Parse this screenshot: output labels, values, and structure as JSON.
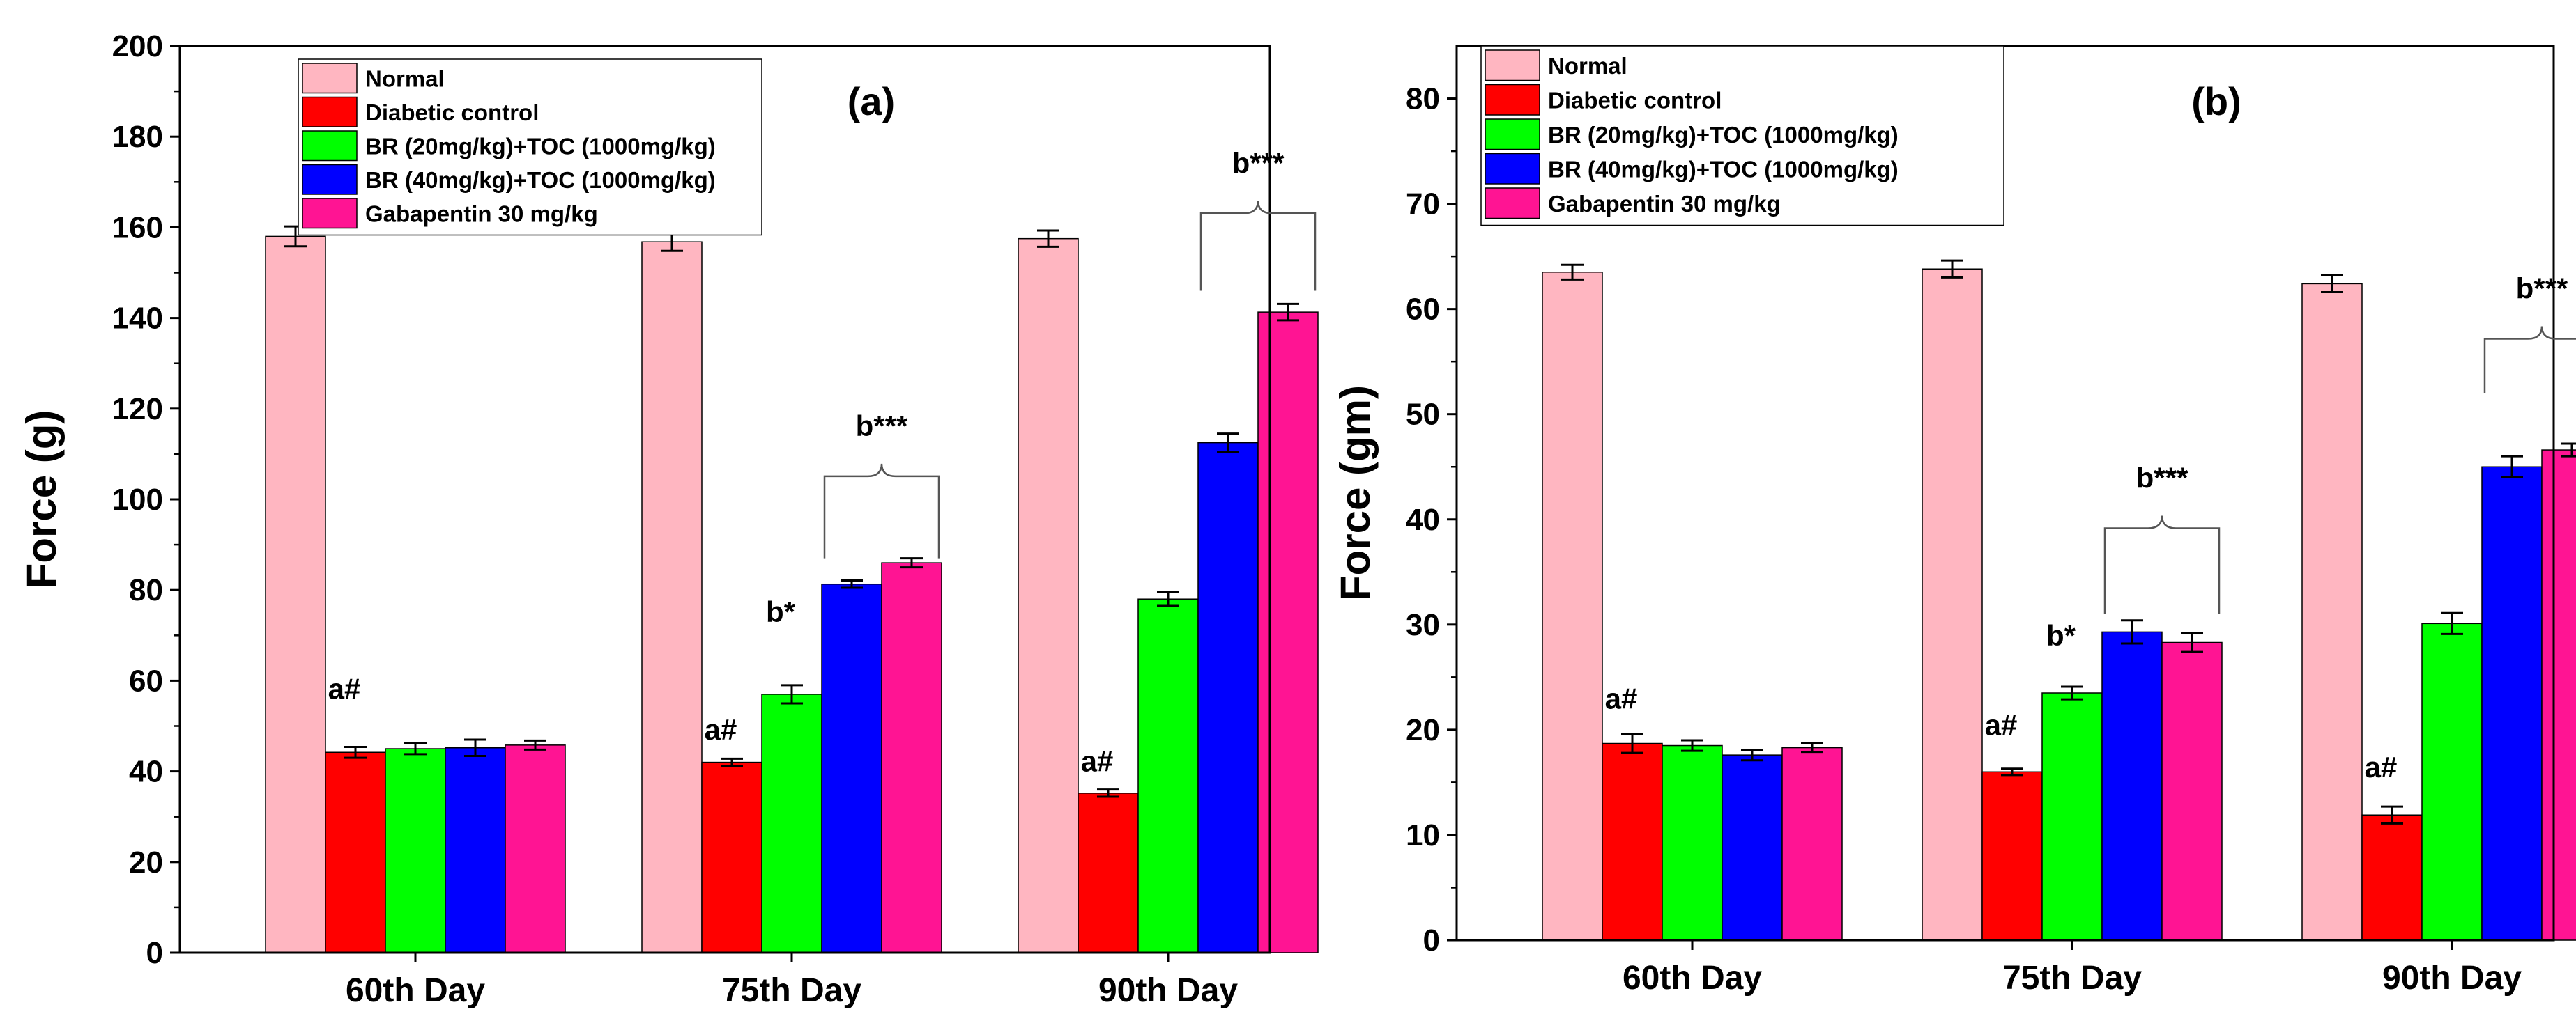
{
  "legend": [
    {
      "label": "Normal",
      "color": "#FFB6C1"
    },
    {
      "label": "Diabetic control",
      "color": "#FF0000"
    },
    {
      "label": "BR (20mg/kg)+TOC (1000mg/kg)",
      "color": "#00FF00"
    },
    {
      "label": "BR (40mg/kg)+TOC (1000mg/kg)",
      "color": "#0000FF"
    },
    {
      "label": "Gabapentin 30 mg/kg",
      "color": "#FF1493"
    }
  ],
  "chart_data": [
    {
      "type": "bar",
      "title": "(a)",
      "xlabel": "",
      "ylabel": "Force (g)",
      "ylim": [
        0,
        200
      ],
      "yticks": [
        "0",
        "20",
        "40",
        "60",
        "80",
        "100",
        "120",
        "140",
        "160",
        "180",
        "200"
      ],
      "yticks_values": [
        0,
        20,
        40,
        60,
        80,
        100,
        120,
        140,
        160,
        180,
        200
      ],
      "categories": [
        "60th Day",
        "75th Day",
        "90th Day"
      ],
      "legend_position": "top-left",
      "series": [
        {
          "name": "Normal",
          "values": [
            158,
            156.8,
            157.5
          ],
          "errors": [
            2.2,
            2.0,
            1.8
          ]
        },
        {
          "name": "Diabetic control",
          "values": [
            44.2,
            42,
            35.2
          ],
          "errors": [
            1.2,
            0.8,
            0.8
          ]
        },
        {
          "name": "BR (20mg/kg)+TOC (1000mg/kg)",
          "values": [
            45,
            57,
            78
          ],
          "errors": [
            1.2,
            2.0,
            1.5
          ]
        },
        {
          "name": "BR (40mg/kg)+TOC (1000mg/kg)",
          "values": [
            45.2,
            81.3,
            112.5
          ],
          "errors": [
            1.8,
            0.8,
            2.0
          ]
        },
        {
          "name": "Gabapentin 30 mg/kg",
          "values": [
            45.8,
            86,
            141.3
          ],
          "errors": [
            1.0,
            1.0,
            1.8
          ]
        }
      ],
      "annotations": [
        {
          "text": "a#",
          "category": 0,
          "series": 1,
          "value": 56
        },
        {
          "text": "a#",
          "category": 1,
          "series": 1,
          "value": 47
        },
        {
          "text": "b*",
          "category": 1,
          "series": 2,
          "value": 73
        },
        {
          "text": "a#",
          "category": 2,
          "series": 1,
          "value": 40
        },
        {
          "text": "b***",
          "category": 1,
          "series": [
            3,
            4
          ],
          "bracket_value": 87,
          "label_value": 114
        },
        {
          "text": "b***",
          "category": 2,
          "series": [
            3,
            4
          ],
          "bracket_value": 146,
          "label_value": 172
        }
      ]
    },
    {
      "type": "bar",
      "title": "(b)",
      "xlabel": "",
      "ylabel": "Force (gm)",
      "ylim": [
        0,
        85
      ],
      "yticks": [
        "0",
        "10",
        "20",
        "30",
        "40",
        "50",
        "60",
        "70",
        "80"
      ],
      "yticks_values": [
        0,
        10,
        20,
        30,
        40,
        50,
        60,
        70,
        80
      ],
      "categories": [
        "60th Day",
        "75th Day",
        "90th Day"
      ],
      "legend_position": "top-left",
      "series": [
        {
          "name": "Normal",
          "values": [
            63.5,
            63.8,
            62.4
          ],
          "errors": [
            0.7,
            0.8,
            0.8
          ]
        },
        {
          "name": "Diabetic control",
          "values": [
            18.7,
            16,
            11.9
          ],
          "errors": [
            0.9,
            0.3,
            0.8
          ]
        },
        {
          "name": "BR (20mg/kg)+TOC (1000mg/kg)",
          "values": [
            18.5,
            23.5,
            30.1
          ],
          "errors": [
            0.5,
            0.6,
            1.0
          ]
        },
        {
          "name": "BR (40mg/kg)+TOC (1000mg/kg)",
          "values": [
            17.6,
            29.3,
            45
          ],
          "errors": [
            0.5,
            1.1,
            1.0
          ]
        },
        {
          "name": "Gabapentin 30 mg/kg",
          "values": [
            18.3,
            28.3,
            46.6
          ],
          "errors": [
            0.4,
            0.9,
            0.6
          ]
        }
      ],
      "annotations": [
        {
          "text": "a#",
          "category": 0,
          "series": 1,
          "value": 22
        },
        {
          "text": "a#",
          "category": 1,
          "series": 1,
          "value": 19.5
        },
        {
          "text": "b*",
          "category": 1,
          "series": 2,
          "value": 28
        },
        {
          "text": "a#",
          "category": 2,
          "series": 1,
          "value": 15.5
        },
        {
          "text": "b***",
          "category": 1,
          "series": [
            3,
            4
          ],
          "bracket_value": 31,
          "label_value": 43
        },
        {
          "text": "b***",
          "category": 2,
          "series": [
            3,
            4
          ],
          "bracket_value": 52,
          "label_value": 61
        }
      ]
    }
  ]
}
